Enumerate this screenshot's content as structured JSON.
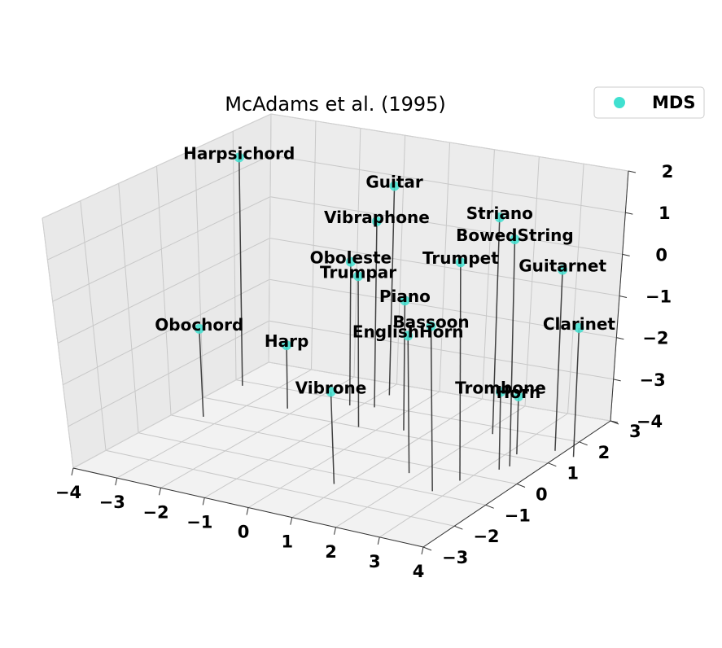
{
  "chart_data": {
    "type": "scatter",
    "title": "McAdams et al. (1995)",
    "projection": "3d",
    "grid": true,
    "legend": {
      "entries": [
        "MDS"
      ],
      "placement": "top-right"
    },
    "xlim": [
      -4,
      4
    ],
    "ylim": [
      -3,
      3
    ],
    "zlim": [
      -4,
      2
    ],
    "xticks": [
      "−4",
      "−3",
      "−2",
      "−1",
      "0",
      "1",
      "2",
      "3",
      "4"
    ],
    "yticks": [
      "−3",
      "−2",
      "−1",
      "0",
      "1",
      "2",
      "3"
    ],
    "zticks": [
      "−4",
      "−3",
      "−2",
      "−1",
      "0",
      "1",
      "2"
    ],
    "series": [
      {
        "name": "MDS",
        "color": "#40e0d0",
        "points": [
          {
            "label": "Harpsichord",
            "x": -3.7,
            "y": 1.8,
            "z": 1.5
          },
          {
            "label": "Obochord",
            "x": -3.4,
            "y": 0.2,
            "z": -1.9
          },
          {
            "label": "Guitar",
            "x": -0.8,
            "y": 2.5,
            "z": 1.0
          },
          {
            "label": "Vibraphone",
            "x": -0.7,
            "y": 1.9,
            "z": 0.4
          },
          {
            "label": "Trumpar",
            "x": -0.4,
            "y": 1.0,
            "z": -0.5
          },
          {
            "label": "Oboleste",
            "x": -1.2,
            "y": 1.8,
            "z": -0.6
          },
          {
            "label": "Harp",
            "x": -2.2,
            "y": 1.2,
            "z": -2.5
          },
          {
            "label": "Piano",
            "x": 0.5,
            "y": 1.2,
            "z": -1.0
          },
          {
            "label": "Vibrone",
            "x": 0.8,
            "y": -1.4,
            "z": -2.0
          },
          {
            "label": "EnglishHorn",
            "x": 1.8,
            "y": -0.4,
            "z": -1.0
          },
          {
            "label": "Striano",
            "x": 2.2,
            "y": 1.7,
            "z": 1.0
          },
          {
            "label": "BowedString",
            "x": 3.4,
            "y": 0.6,
            "z": 1.0
          },
          {
            "label": "Guitarnet",
            "x": 3.8,
            "y": 1.5,
            "z": 0.1
          },
          {
            "label": "Trumpet",
            "x": 2.9,
            "y": -0.3,
            "z": 0.7
          },
          {
            "label": "Clarinet",
            "x": 4.3,
            "y": 1.4,
            "z": -1.1
          },
          {
            "label": "Bassoon",
            "x": 2.7,
            "y": -0.9,
            "z": -0.5
          },
          {
            "label": "Trombone",
            "x": 3.3,
            "y": 0.4,
            "z": -2.3
          },
          {
            "label": "Horn",
            "x": 3.2,
            "y": 1.1,
            "z": -2.7
          }
        ]
      }
    ]
  }
}
